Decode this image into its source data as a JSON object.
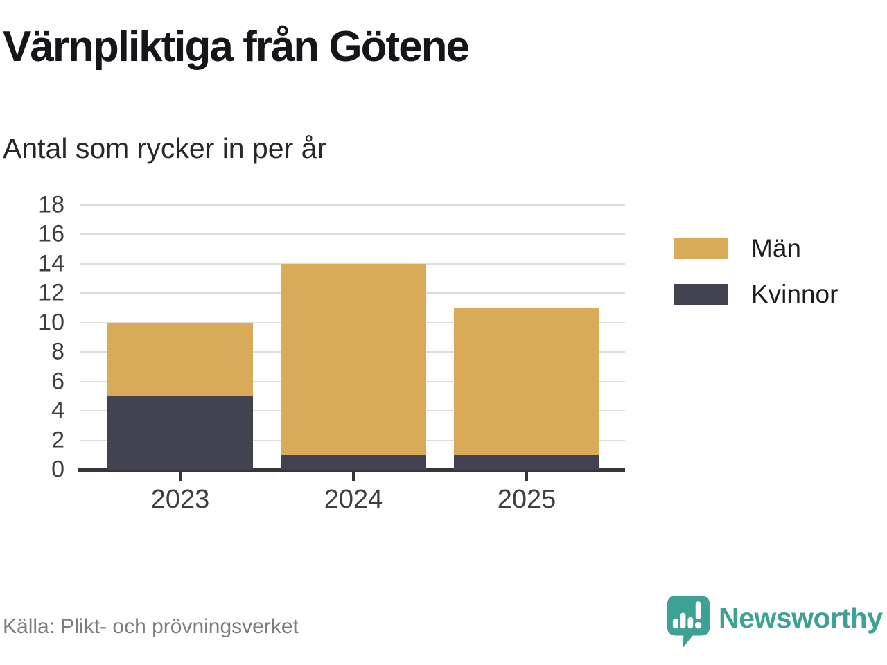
{
  "chart_data": {
    "type": "bar",
    "stacked": true,
    "title": "Värnpliktiga från Götene",
    "subtitle": "Antal som rycker in per år",
    "categories": [
      "2023",
      "2024",
      "2025"
    ],
    "series": [
      {
        "name": "Kvinnor",
        "color": "#424250",
        "values": [
          5,
          1,
          1
        ]
      },
      {
        "name": "Män",
        "color": "#d9ab58",
        "values": [
          5,
          13,
          10
        ]
      }
    ],
    "totals": [
      10,
      14,
      11
    ],
    "legend": [
      {
        "label": "Män",
        "color": "#d9ab58"
      },
      {
        "label": "Kvinnor",
        "color": "#424250"
      }
    ],
    "xlabel": "",
    "ylabel": "",
    "ylim": [
      0,
      18
    ],
    "ytick_step": 2,
    "grid": true,
    "legend_position": "right",
    "colors": {
      "axis": "#35343f",
      "gridline": "#dedede",
      "tick_text": "#3d3d42"
    }
  },
  "footer": {
    "source": "Källa: Plikt- och prövningsverket",
    "brand": "Newsworthy",
    "brand_color": "#3da294"
  }
}
